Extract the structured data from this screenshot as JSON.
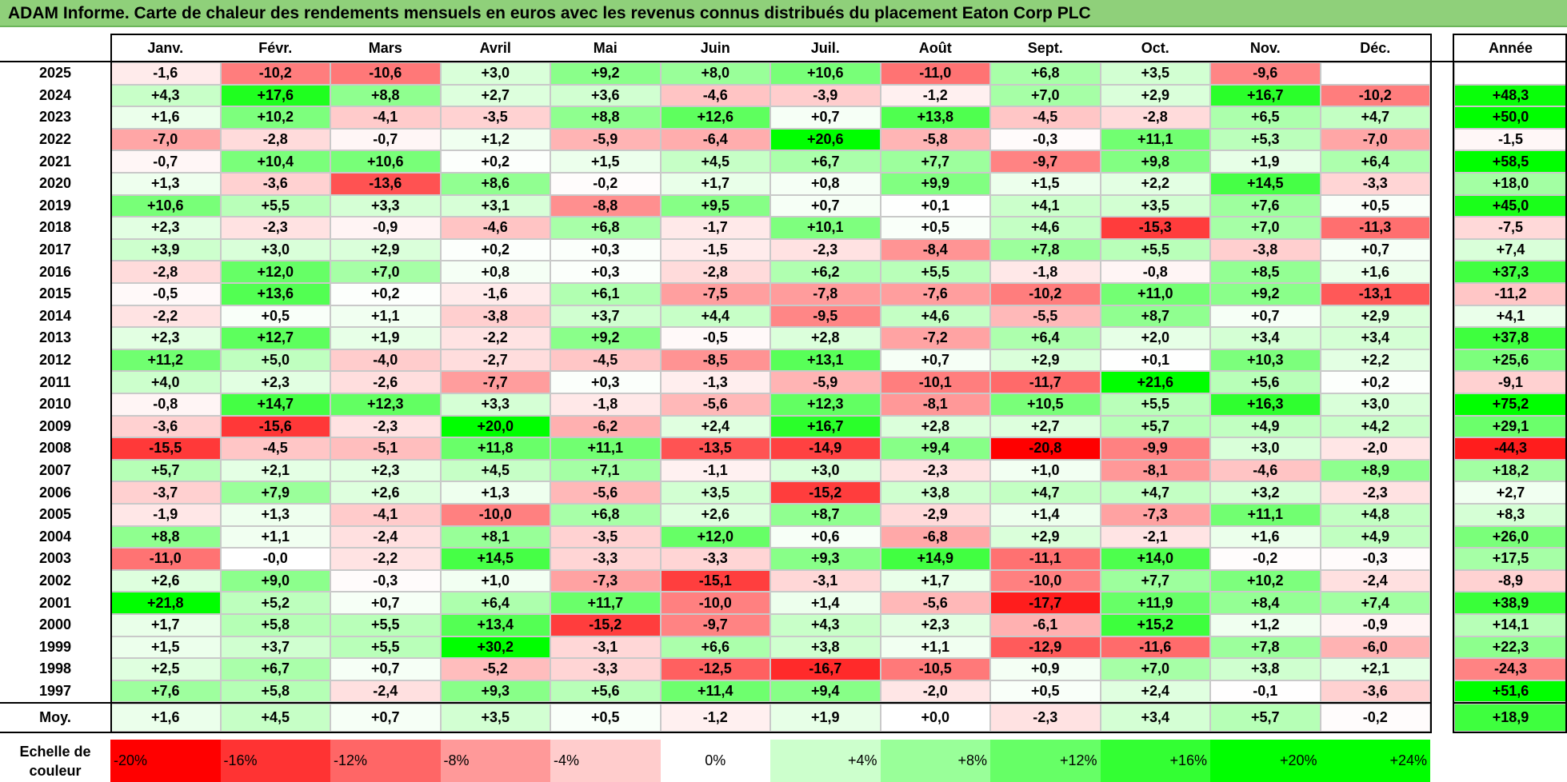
{
  "title": "ADAM Informe. Carte de chaleur des rendements mensuels en euros avec les revenus connus distribués du placement Eaton Corp PLC",
  "chart_data": {
    "type": "heatmap",
    "months": [
      "Janv.",
      "Févr.",
      "Mars",
      "Avril",
      "Mai",
      "Juin",
      "Juil.",
      "Août",
      "Sept.",
      "Oct.",
      "Nov.",
      "Déc."
    ],
    "year_header": "Année",
    "rows": [
      {
        "year": "2025",
        "values": [
          "-1,6",
          "-10,2",
          "-10,6",
          "+3,0",
          "+9,2",
          "+8,0",
          "+10,6",
          "-11,0",
          "+6,8",
          "+3,5",
          "-9,6",
          ""
        ],
        "annual": ""
      },
      {
        "year": "2024",
        "values": [
          "+4,3",
          "+17,6",
          "+8,8",
          "+2,7",
          "+3,6",
          "-4,6",
          "-3,9",
          "-1,2",
          "+7,0",
          "+2,9",
          "+16,7",
          "-10,2"
        ],
        "annual": "+48,3"
      },
      {
        "year": "2023",
        "values": [
          "+1,6",
          "+10,2",
          "-4,1",
          "-3,5",
          "+8,8",
          "+12,6",
          "+0,7",
          "+13,8",
          "-4,5",
          "-2,8",
          "+6,5",
          "+4,7"
        ],
        "annual": "+50,0"
      },
      {
        "year": "2022",
        "values": [
          "-7,0",
          "-2,8",
          "-0,7",
          "+1,2",
          "-5,9",
          "-6,4",
          "+20,6",
          "-5,8",
          "-0,3",
          "+11,1",
          "+5,3",
          "-7,0"
        ],
        "annual": "-1,5"
      },
      {
        "year": "2021",
        "values": [
          "-0,7",
          "+10,4",
          "+10,6",
          "+0,2",
          "+1,5",
          "+4,5",
          "+6,7",
          "+7,7",
          "-9,7",
          "+9,8",
          "+1,9",
          "+6,4"
        ],
        "annual": "+58,5"
      },
      {
        "year": "2020",
        "values": [
          "+1,3",
          "-3,6",
          "-13,6",
          "+8,6",
          "-0,2",
          "+1,7",
          "+0,8",
          "+9,9",
          "+1,5",
          "+2,2",
          "+14,5",
          "-3,3"
        ],
        "annual": "+18,0"
      },
      {
        "year": "2019",
        "values": [
          "+10,6",
          "+5,5",
          "+3,3",
          "+3,1",
          "-8,8",
          "+9,5",
          "+0,7",
          "+0,1",
          "+4,1",
          "+3,5",
          "+7,6",
          "+0,5"
        ],
        "annual": "+45,0"
      },
      {
        "year": "2018",
        "values": [
          "+2,3",
          "-2,3",
          "-0,9",
          "-4,6",
          "+6,8",
          "-1,7",
          "+10,1",
          "+0,5",
          "+4,6",
          "-15,3",
          "+7,0",
          "-11,3"
        ],
        "annual": "-7,5"
      },
      {
        "year": "2017",
        "values": [
          "+3,9",
          "+3,0",
          "+2,9",
          "+0,2",
          "+0,3",
          "-1,5",
          "-2,3",
          "-8,4",
          "+7,8",
          "+5,5",
          "-3,8",
          "+0,7"
        ],
        "annual": "+7,4"
      },
      {
        "year": "2016",
        "values": [
          "-2,8",
          "+12,0",
          "+7,0",
          "+0,8",
          "+0,3",
          "-2,8",
          "+6,2",
          "+5,5",
          "-1,8",
          "-0,8",
          "+8,5",
          "+1,6"
        ],
        "annual": "+37,3"
      },
      {
        "year": "2015",
        "values": [
          "-0,5",
          "+13,6",
          "+0,2",
          "-1,6",
          "+6,1",
          "-7,5",
          "-7,8",
          "-7,6",
          "-10,2",
          "+11,0",
          "+9,2",
          "-13,1"
        ],
        "annual": "-11,2"
      },
      {
        "year": "2014",
        "values": [
          "-2,2",
          "+0,5",
          "+1,1",
          "-3,8",
          "+3,7",
          "+4,4",
          "-9,5",
          "+4,6",
          "-5,5",
          "+8,7",
          "+0,7",
          "+2,9"
        ],
        "annual": "+4,1"
      },
      {
        "year": "2013",
        "values": [
          "+2,3",
          "+12,7",
          "+1,9",
          "-2,2",
          "+9,2",
          "-0,5",
          "+2,8",
          "-7,2",
          "+6,4",
          "+2,0",
          "+3,4",
          "+3,4"
        ],
        "annual": "+37,8"
      },
      {
        "year": "2012",
        "values": [
          "+11,2",
          "+5,0",
          "-4,0",
          "-2,7",
          "-4,5",
          "-8,5",
          "+13,1",
          "+0,7",
          "+2,9",
          "+0,1",
          "+10,3",
          "+2,2"
        ],
        "annual": "+25,6"
      },
      {
        "year": "2011",
        "values": [
          "+4,0",
          "+2,3",
          "-2,6",
          "-7,7",
          "+0,3",
          "-1,3",
          "-5,9",
          "-10,1",
          "-11,7",
          "+21,6",
          "+5,6",
          "+0,2"
        ],
        "annual": "-9,1"
      },
      {
        "year": "2010",
        "values": [
          "-0,8",
          "+14,7",
          "+12,3",
          "+3,3",
          "-1,8",
          "-5,6",
          "+12,3",
          "-8,1",
          "+10,5",
          "+5,5",
          "+16,3",
          "+3,0"
        ],
        "annual": "+75,2"
      },
      {
        "year": "2009",
        "values": [
          "-3,6",
          "-15,6",
          "-2,3",
          "+20,0",
          "-6,2",
          "+2,4",
          "+16,7",
          "+2,8",
          "+2,7",
          "+5,7",
          "+4,9",
          "+4,2"
        ],
        "annual": "+29,1"
      },
      {
        "year": "2008",
        "values": [
          "-15,5",
          "-4,5",
          "-5,1",
          "+11,8",
          "+11,1",
          "-13,5",
          "-14,9",
          "+9,4",
          "-20,8",
          "-9,9",
          "+3,0",
          "-2,0"
        ],
        "annual": "-44,3"
      },
      {
        "year": "2007",
        "values": [
          "+5,7",
          "+2,1",
          "+2,3",
          "+4,5",
          "+7,1",
          "-1,1",
          "+3,0",
          "-2,3",
          "+1,0",
          "-8,1",
          "-4,6",
          "+8,9"
        ],
        "annual": "+18,2"
      },
      {
        "year": "2006",
        "values": [
          "-3,7",
          "+7,9",
          "+2,6",
          "+1,3",
          "-5,6",
          "+3,5",
          "-15,2",
          "+3,8",
          "+4,7",
          "+4,7",
          "+3,2",
          "-2,3"
        ],
        "annual": "+2,7"
      },
      {
        "year": "2005",
        "values": [
          "-1,9",
          "+1,3",
          "-4,1",
          "-10,0",
          "+6,8",
          "+2,6",
          "+8,7",
          "-2,9",
          "+1,4",
          "-7,3",
          "+11,1",
          "+4,8"
        ],
        "annual": "+8,3"
      },
      {
        "year": "2004",
        "values": [
          "+8,8",
          "+1,1",
          "-2,4",
          "+8,1",
          "-3,5",
          "+12,0",
          "+0,6",
          "-6,8",
          "+2,9",
          "-2,1",
          "+1,6",
          "+4,9"
        ],
        "annual": "+26,0"
      },
      {
        "year": "2003",
        "values": [
          "-11,0",
          "-0,0",
          "-2,2",
          "+14,5",
          "-3,3",
          "-3,3",
          "+9,3",
          "+14,9",
          "-11,1",
          "+14,0",
          "-0,2",
          "-0,3"
        ],
        "annual": "+17,5"
      },
      {
        "year": "2002",
        "values": [
          "+2,6",
          "+9,0",
          "-0,3",
          "+1,0",
          "-7,3",
          "-15,1",
          "-3,1",
          "+1,7",
          "-10,0",
          "+7,7",
          "+10,2",
          "-2,4"
        ],
        "annual": "-8,9"
      },
      {
        "year": "2001",
        "values": [
          "+21,8",
          "+5,2",
          "+0,7",
          "+6,4",
          "+11,7",
          "-10,0",
          "+1,4",
          "-5,6",
          "-17,7",
          "+11,9",
          "+8,4",
          "+7,4"
        ],
        "annual": "+38,9"
      },
      {
        "year": "2000",
        "values": [
          "+1,7",
          "+5,8",
          "+5,5",
          "+13,4",
          "-15,2",
          "-9,7",
          "+4,3",
          "+2,3",
          "-6,1",
          "+15,2",
          "+1,2",
          "-0,9"
        ],
        "annual": "+14,1"
      },
      {
        "year": "1999",
        "values": [
          "+1,5",
          "+3,7",
          "+5,5",
          "+30,2",
          "-3,1",
          "+6,6",
          "+3,8",
          "+1,1",
          "-12,9",
          "-11,6",
          "+7,8",
          "-6,0"
        ],
        "annual": "+22,3"
      },
      {
        "year": "1998",
        "values": [
          "+2,5",
          "+6,7",
          "+0,7",
          "-5,2",
          "-3,3",
          "-12,5",
          "-16,7",
          "-10,5",
          "+0,9",
          "+7,0",
          "+3,8",
          "+2,1"
        ],
        "annual": "-24,3"
      },
      {
        "year": "1997",
        "values": [
          "+7,6",
          "+5,8",
          "-2,4",
          "+9,3",
          "+5,6",
          "+11,4",
          "+9,4",
          "-2,0",
          "+0,5",
          "+2,4",
          "-0,1",
          "-3,6"
        ],
        "annual": "+51,6"
      }
    ],
    "average": {
      "label": "Moy.",
      "values": [
        "+1,6",
        "+4,5",
        "+0,7",
        "+3,5",
        "+0,5",
        "-1,2",
        "+1,9",
        "+0,0",
        "-2,3",
        "+3,4",
        "+5,7",
        "-0,2"
      ],
      "annual": "+18,9"
    },
    "scale": {
      "label_line1": "Echelle de",
      "label_line2": "couleur",
      "stops": [
        "-20%",
        "-16%",
        "-12%",
        "-8%",
        "-4%",
        "0%",
        "+4%",
        "+8%",
        "+12%",
        "+16%",
        "+20%",
        "+24%"
      ]
    },
    "colors": {
      "negative": "#ff0000",
      "neutral": "#ffffff",
      "positive": "#00ff00"
    }
  }
}
